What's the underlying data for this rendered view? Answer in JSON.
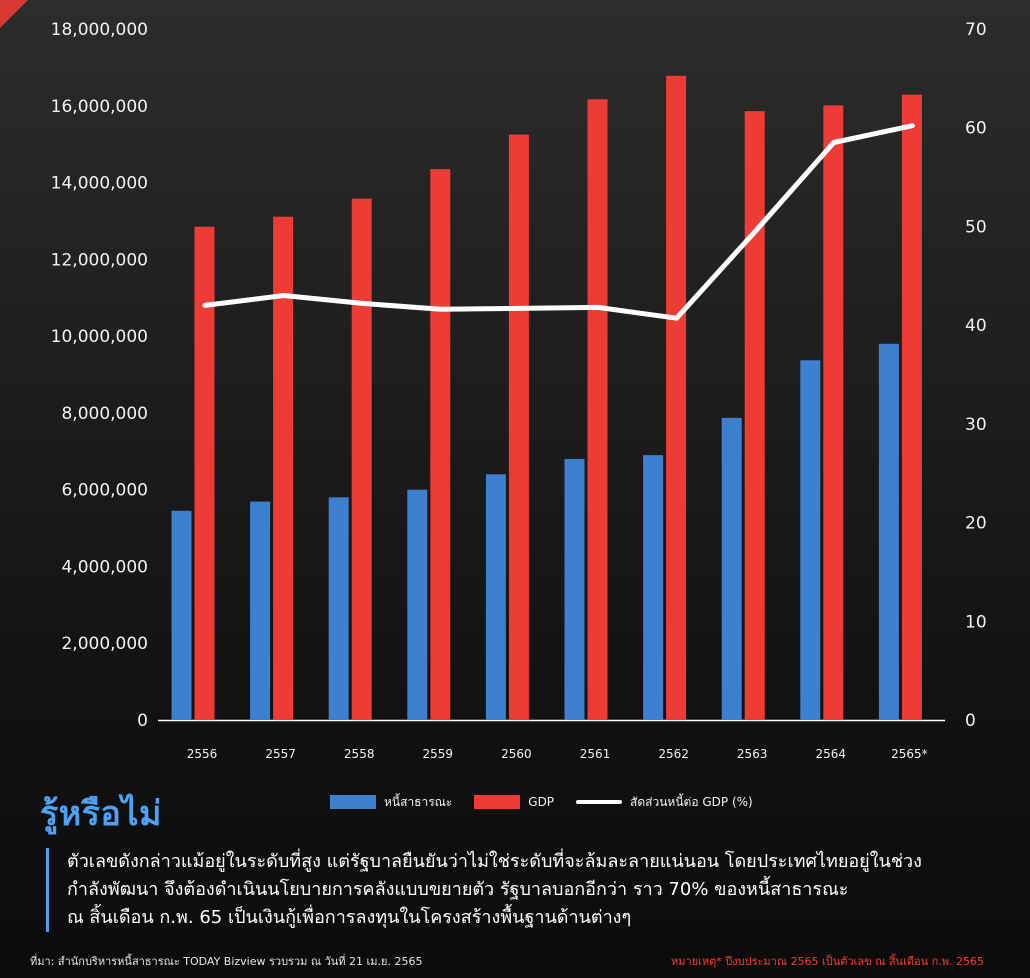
{
  "chart_data": {
    "type": "bar",
    "categories": [
      "2556",
      "2557",
      "2558",
      "2559",
      "2560",
      "2561",
      "2562",
      "2563",
      "2564",
      "2565*"
    ],
    "series": [
      {
        "name": "หนี้สาธารณะ",
        "type": "bar",
        "axis": "left",
        "color": "#3c80cf",
        "values": [
          5450000,
          5690000,
          5800000,
          6000000,
          6400000,
          6800000,
          6900000,
          7870000,
          9370000,
          9800000
        ]
      },
      {
        "name": "GDP",
        "type": "bar",
        "axis": "left",
        "color": "#ee3b36",
        "values": [
          12850000,
          13110000,
          13580000,
          14350000,
          15250000,
          16170000,
          16780000,
          15860000,
          16010000,
          16290000
        ]
      },
      {
        "name": "สัดส่วนหนี้ต่อ GDP (%)",
        "type": "line",
        "axis": "right",
        "color": "#ffffff",
        "values": [
          42.0,
          43.0,
          42.2,
          41.6,
          41.7,
          41.8,
          40.7,
          49.5,
          58.5,
          60.2
        ]
      }
    ],
    "y_left": {
      "min": 0,
      "max": 18000000,
      "ticks": [
        "0",
        "2,000,000",
        "4,000,000",
        "6,000,000",
        "8,000,000",
        "10,000,000",
        "12,000,000",
        "14,000,000",
        "16,000,000",
        "18,000,000"
      ]
    },
    "y_right": {
      "min": 0,
      "max": 70,
      "ticks": [
        "0",
        "10",
        "20",
        "30",
        "40",
        "50",
        "60",
        "70"
      ]
    },
    "legend_position": "bottom",
    "grid": false
  },
  "heading": "รู้หรือไม่",
  "paragraph": [
    "ตัวเลขดังกล่าวแม้อยู่ในระดับที่สูง แต่รัฐบาลยืนยันว่าไม่ใช่ระดับที่จะล้มละลายแน่นอน โดยประเทศไทยอยู่ในช่วง",
    "กำลังพัฒนา จึงต้องดำเนินนโยบายการคลังแบบขยายตัว รัฐบาลบอกอีกว่า ราว 70% ของหนี้สาธารณะ",
    "ณ สิ้นเดือน ก.พ. 65 เป็นเงินกู้เพื่อการลงทุนในโครงสร้างพื้นฐานด้านต่างๆ"
  ],
  "source": "ที่มา: สำนักบริหารหนี้สาธารณะ TODAY Bizview รวบรวม ณ วันที่ 21 เม.ย. 2565",
  "note": "หมายเหตุ* ปีงบประมาณ 2565 เป็นตัวเลข ณ สิ้นเดือน ก.พ. 2565"
}
